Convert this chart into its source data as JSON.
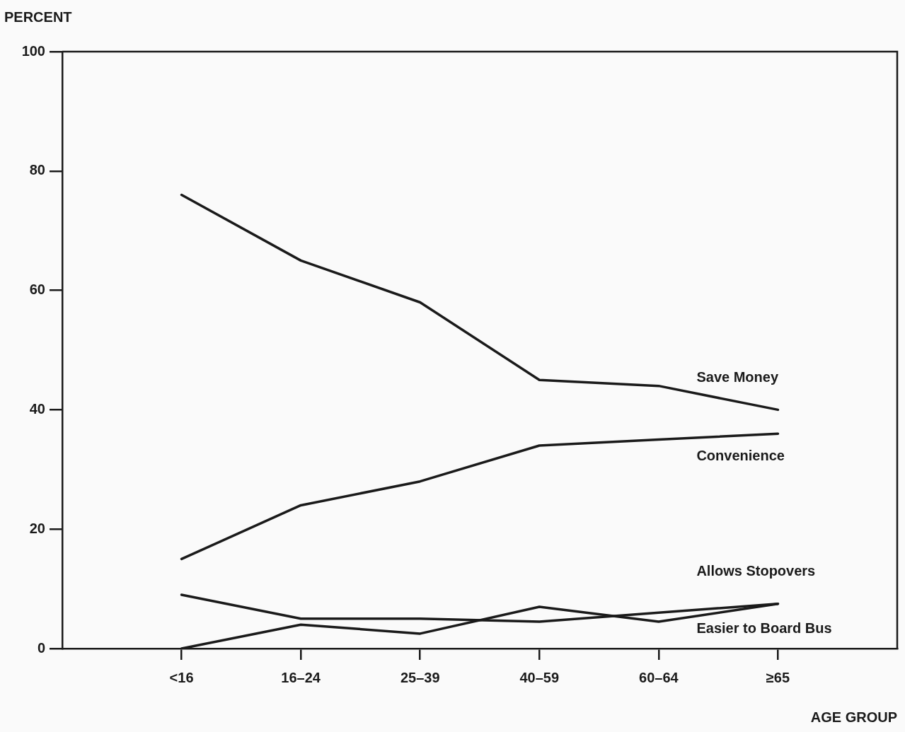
{
  "chart_data": {
    "type": "line",
    "ylabel": "PERCENT",
    "xlabel": "AGE GROUP",
    "categories": [
      "<16",
      "16–24",
      "25–39",
      "40–59",
      "60–64",
      "≥65"
    ],
    "ylim": [
      0,
      100
    ],
    "yticks": [
      0,
      20,
      40,
      60,
      80,
      100
    ],
    "marker": "none",
    "line_style": "solid",
    "legend": false,
    "series": [
      {
        "name": "Save Money",
        "color": "#1a1a1a",
        "values": [
          76,
          65,
          58,
          45,
          44,
          40
        ]
      },
      {
        "name": "Convenience",
        "color": "#1a1a1a",
        "values": [
          15,
          24,
          28,
          34,
          35,
          36
        ]
      },
      {
        "name": "Allows Stopovers",
        "color": "#1a1a1a",
        "values": [
          9,
          5,
          5,
          4.5,
          6,
          7.5
        ]
      },
      {
        "name": "Easier to Board Bus",
        "color": "#1a1a1a",
        "values": [
          0,
          4,
          2.5,
          7,
          4.5,
          7.5
        ]
      }
    ]
  }
}
